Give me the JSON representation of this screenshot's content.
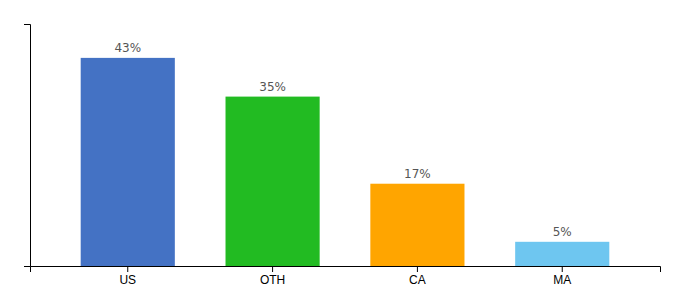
{
  "chart_data": {
    "type": "bar",
    "categories": [
      "US",
      "OTH",
      "CA",
      "MA"
    ],
    "values": [
      43,
      35,
      17,
      5
    ],
    "value_labels": [
      "43%",
      "35%",
      "17%",
      "5%"
    ],
    "colors": [
      "#4472C4",
      "#22BB22",
      "#FFA500",
      "#6EC6F0"
    ],
    "ylim": [
      0,
      50
    ],
    "data_labels": true,
    "tick_labels": "x",
    "grid": false
  }
}
